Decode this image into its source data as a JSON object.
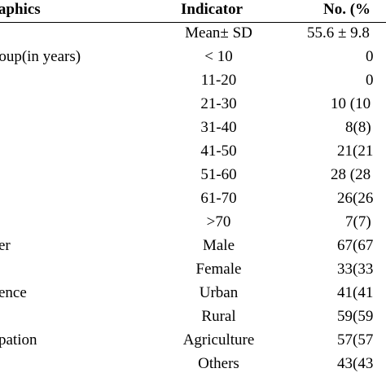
{
  "headers": {
    "demographics": "graphics",
    "indicator": "Indicator",
    "number": "No. (%"
  },
  "rows": [
    {
      "demographic": "",
      "indicator": "Mean± SD",
      "value": "55.6 ± 9.8"
    },
    {
      "demographic": "roup(in years)",
      "indicator": "< 10",
      "value": "0"
    },
    {
      "demographic": "",
      "indicator": "11-20",
      "value": "0"
    },
    {
      "demographic": "",
      "indicator": "21-30",
      "value": "10 (10"
    },
    {
      "demographic": "",
      "indicator": "31-40",
      "value": "8(8)"
    },
    {
      "demographic": "",
      "indicator": "41-50",
      "value": "21(21"
    },
    {
      "demographic": "",
      "indicator": "51-60",
      "value": "28 (28"
    },
    {
      "demographic": "",
      "indicator": "61-70",
      "value": "26(26"
    },
    {
      "demographic": "",
      "indicator": ">70",
      "value": "7(7)"
    },
    {
      "demographic": "er",
      "indicator": "Male",
      "value": "67(67"
    },
    {
      "demographic": "",
      "indicator": "Female",
      "value": "33(33"
    },
    {
      "demographic": "ence",
      "indicator": "Urban",
      "value": "41(41"
    },
    {
      "demographic": "",
      "indicator": "Rural",
      "value": "59(59"
    },
    {
      "demographic": "pation",
      "indicator": "Agriculture",
      "value": "57(57"
    },
    {
      "demographic": "",
      "indicator": "Others",
      "value": "43(43"
    }
  ]
}
